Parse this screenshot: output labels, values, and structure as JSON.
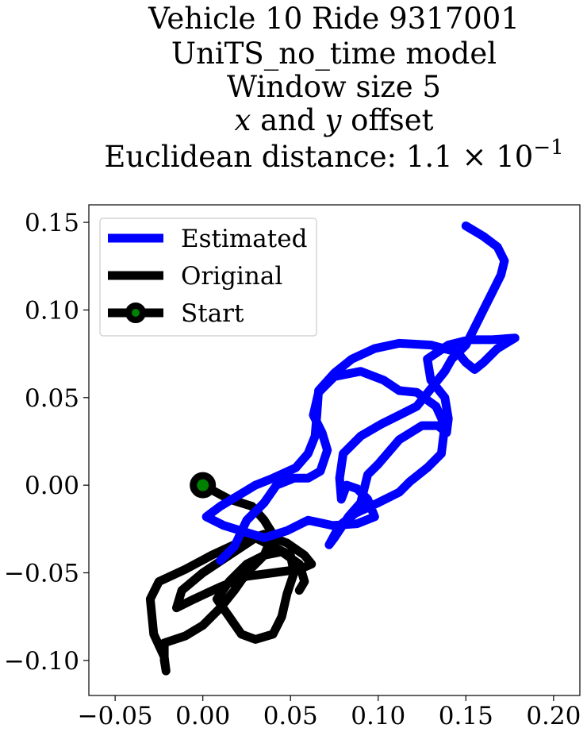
{
  "chart_data": {
    "type": "line",
    "title_lines": [
      "Vehicle 10 Ride 9317001",
      "UniTS_no_time model",
      "Window size 5",
      [
        "x",
        " and ",
        "y",
        " offset"
      ],
      [
        "Euclidean distance: 1.1 × 10",
        "−1"
      ]
    ],
    "xlim": [
      -0.065,
      0.215
    ],
    "ylim": [
      -0.12,
      0.16
    ],
    "xticks": [
      -0.05,
      0.0,
      0.05,
      0.1,
      0.15,
      0.2
    ],
    "xtick_labels": [
      "−0.05",
      "0.00",
      "0.05",
      "0.10",
      "0.15",
      "0.20"
    ],
    "yticks": [
      -0.1,
      -0.05,
      0.0,
      0.05,
      0.1,
      0.15
    ],
    "ytick_labels": [
      "−0.10",
      "−0.05",
      "0.00",
      "0.05",
      "0.10",
      "0.15"
    ],
    "legend": {
      "position": "upper-left",
      "entries": [
        {
          "label": "Estimated",
          "color": "#0000ff"
        },
        {
          "label": "Original",
          "color": "#000000"
        },
        {
          "label": "Start",
          "color": "#000000",
          "marker_face": "#008000"
        }
      ]
    },
    "series": [
      {
        "name": "Original",
        "color": "#000000",
        "points": [
          [
            0.0,
            0.0
          ],
          [
            0.015,
            -0.008
          ],
          [
            0.028,
            -0.012
          ],
          [
            0.035,
            -0.02
          ],
          [
            0.04,
            -0.028
          ],
          [
            0.035,
            -0.04
          ],
          [
            0.025,
            -0.05
          ],
          [
            0.018,
            -0.06
          ],
          [
            0.01,
            -0.07
          ],
          [
            0.0,
            -0.08
          ],
          [
            -0.01,
            -0.086
          ],
          [
            -0.022,
            -0.09
          ],
          [
            -0.022,
            -0.1
          ],
          [
            -0.021,
            -0.106
          ],
          [
            -0.022,
            -0.098
          ],
          [
            -0.028,
            -0.085
          ],
          [
            -0.03,
            -0.065
          ],
          [
            -0.025,
            -0.055
          ],
          [
            -0.01,
            -0.048
          ],
          [
            0.005,
            -0.04
          ],
          [
            0.02,
            -0.033
          ],
          [
            0.035,
            -0.028
          ],
          [
            0.048,
            -0.033
          ],
          [
            0.058,
            -0.04
          ],
          [
            0.062,
            -0.045
          ],
          [
            0.055,
            -0.048
          ],
          [
            0.04,
            -0.05
          ],
          [
            0.025,
            -0.052
          ],
          [
            0.01,
            -0.058
          ],
          [
            -0.005,
            -0.065
          ],
          [
            -0.015,
            -0.07
          ],
          [
            -0.012,
            -0.06
          ],
          [
            0.0,
            -0.05
          ],
          [
            0.015,
            -0.04
          ],
          [
            0.03,
            -0.03
          ],
          [
            0.04,
            -0.035
          ],
          [
            0.05,
            -0.04
          ],
          [
            0.052,
            -0.05
          ],
          [
            0.048,
            -0.062
          ],
          [
            0.045,
            -0.075
          ],
          [
            0.04,
            -0.085
          ],
          [
            0.03,
            -0.088
          ],
          [
            0.022,
            -0.085
          ],
          [
            0.015,
            -0.075
          ],
          [
            0.008,
            -0.065
          ],
          [
            0.015,
            -0.055
          ],
          [
            0.025,
            -0.045
          ],
          [
            0.035,
            -0.04
          ],
          [
            0.045,
            -0.038
          ],
          [
            0.055,
            -0.045
          ],
          [
            0.058,
            -0.055
          ],
          [
            0.055,
            -0.06
          ]
        ]
      },
      {
        "name": "Estimated",
        "color": "#0000ff",
        "points": [
          [
            0.01,
            -0.043
          ],
          [
            0.018,
            -0.035
          ],
          [
            0.025,
            -0.02
          ],
          [
            0.035,
            -0.01
          ],
          [
            0.042,
            0.0
          ],
          [
            0.052,
            0.004
          ],
          [
            0.06,
            0.004
          ],
          [
            0.067,
            0.008
          ],
          [
            0.071,
            0.02
          ],
          [
            0.068,
            0.03
          ],
          [
            0.063,
            0.04
          ],
          [
            0.066,
            0.053
          ],
          [
            0.075,
            0.062
          ],
          [
            0.09,
            0.065
          ],
          [
            0.103,
            0.06
          ],
          [
            0.112,
            0.054
          ],
          [
            0.122,
            0.053
          ],
          [
            0.133,
            0.045
          ],
          [
            0.138,
            0.034
          ],
          [
            0.136,
            0.018
          ],
          [
            0.128,
            0.01
          ],
          [
            0.118,
            0.002
          ],
          [
            0.112,
            -0.004
          ],
          [
            0.1,
            -0.01
          ],
          [
            0.087,
            -0.016
          ],
          [
            0.078,
            -0.023
          ],
          [
            0.072,
            -0.034
          ],
          [
            0.075,
            -0.03
          ],
          [
            0.083,
            -0.018
          ],
          [
            0.09,
            -0.01
          ],
          [
            0.094,
            0.006
          ],
          [
            0.1,
            0.012
          ],
          [
            0.112,
            0.026
          ],
          [
            0.125,
            0.034
          ],
          [
            0.134,
            0.034
          ],
          [
            0.139,
            0.03
          ],
          [
            0.14,
            0.038
          ],
          [
            0.138,
            0.05
          ],
          [
            0.13,
            0.06
          ],
          [
            0.128,
            0.072
          ],
          [
            0.14,
            0.08
          ],
          [
            0.152,
            0.083
          ],
          [
            0.165,
            0.083
          ],
          [
            0.178,
            0.084
          ],
          [
            0.168,
            0.078
          ],
          [
            0.16,
            0.07
          ],
          [
            0.155,
            0.066
          ],
          [
            0.15,
            0.07
          ],
          [
            0.145,
            0.076
          ],
          [
            0.13,
            0.08
          ],
          [
            0.112,
            0.081
          ],
          [
            0.098,
            0.078
          ],
          [
            0.085,
            0.072
          ],
          [
            0.075,
            0.064
          ],
          [
            0.066,
            0.054
          ],
          [
            0.065,
            0.04
          ],
          [
            0.064,
            0.028
          ],
          [
            0.06,
            0.018
          ],
          [
            0.053,
            0.01
          ],
          [
            0.04,
            0.004
          ],
          [
            0.03,
            0.0
          ],
          [
            0.02,
            -0.006
          ],
          [
            0.01,
            -0.012
          ],
          [
            0.002,
            -0.018
          ],
          [
            0.012,
            -0.023
          ],
          [
            0.025,
            -0.027
          ],
          [
            0.035,
            -0.03
          ],
          [
            0.048,
            -0.026
          ],
          [
            0.06,
            -0.02
          ],
          [
            0.074,
            -0.023
          ],
          [
            0.088,
            -0.022
          ],
          [
            0.098,
            -0.018
          ],
          [
            0.094,
            -0.008
          ],
          [
            0.088,
            -0.002
          ],
          [
            0.082,
            0.0
          ],
          [
            0.079,
            -0.008
          ],
          [
            0.078,
            0.004
          ],
          [
            0.08,
            0.018
          ],
          [
            0.09,
            0.028
          ],
          [
            0.102,
            0.035
          ],
          [
            0.112,
            0.04
          ],
          [
            0.122,
            0.045
          ],
          [
            0.13,
            0.055
          ],
          [
            0.138,
            0.065
          ],
          [
            0.142,
            0.072
          ],
          [
            0.15,
            0.08
          ],
          [
            0.155,
            0.09
          ],
          [
            0.16,
            0.1
          ],
          [
            0.165,
            0.11
          ],
          [
            0.17,
            0.12
          ],
          [
            0.172,
            0.128
          ],
          [
            0.168,
            0.136
          ],
          [
            0.16,
            0.142
          ],
          [
            0.15,
            0.148
          ]
        ]
      }
    ],
    "start_point": [
      0.0,
      0.0
    ]
  }
}
